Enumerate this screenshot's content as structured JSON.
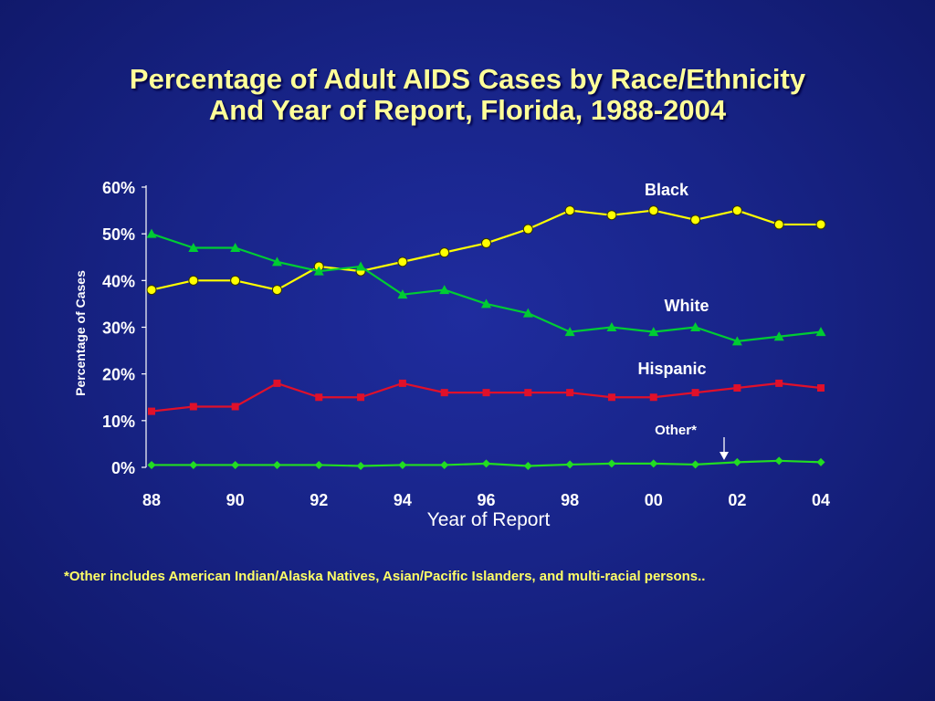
{
  "title": {
    "line1": "Percentage of Adult AIDS Cases by Race/Ethnicity",
    "line2": "And Year of Report, Florida, 1988-2004"
  },
  "footnote": "*Other includes American Indian/Alaska Natives,  Asian/Pacific Islanders, and multi-racial persons..",
  "chart_data": {
    "type": "line",
    "xlabel": "Year of Report",
    "ylabel": "Percentage of Cases",
    "x_ticks": [
      "88",
      "90",
      "92",
      "94",
      "96",
      "98",
      "00",
      "02",
      "04"
    ],
    "x": [
      1988,
      1989,
      1990,
      1991,
      1992,
      1993,
      1994,
      1995,
      1996,
      1997,
      1998,
      1999,
      2000,
      2001,
      2002,
      2003,
      2004
    ],
    "xlim": [
      1988,
      2004
    ],
    "y_ticks": [
      "0%",
      "10%",
      "20%",
      "30%",
      "40%",
      "50%",
      "60%"
    ],
    "ylim": [
      0,
      60
    ],
    "grid": false,
    "legend": "inline labels",
    "series": [
      {
        "name": "Black",
        "color": "#ffff00",
        "marker": "circle",
        "values": [
          38,
          40,
          40,
          38,
          43,
          42,
          44,
          46,
          48,
          51,
          55,
          54,
          55,
          53,
          55,
          52,
          52
        ]
      },
      {
        "name": "White",
        "color": "#00cc33",
        "marker": "triangle",
        "values": [
          50,
          47,
          47,
          44,
          42,
          43,
          37,
          38,
          35,
          33,
          29,
          30,
          29,
          30,
          27,
          28,
          29
        ]
      },
      {
        "name": "Hispanic",
        "color": "#e0102a",
        "marker": "square",
        "values": [
          12,
          13,
          13,
          18,
          15,
          15,
          18,
          16,
          16,
          16,
          16,
          15,
          15,
          16,
          17,
          18,
          17
        ]
      },
      {
        "name": "Other*",
        "color": "#22dd22",
        "marker": "diamond",
        "values": [
          0.5,
          0.5,
          0.5,
          0.5,
          0.5,
          0.3,
          0.5,
          0.5,
          0.8,
          0.3,
          0.6,
          0.8,
          0.8,
          0.6,
          1.1,
          1.4,
          1.1
        ]
      }
    ],
    "colors": {
      "axis": "#ffffff",
      "text": "#ffffff"
    }
  }
}
